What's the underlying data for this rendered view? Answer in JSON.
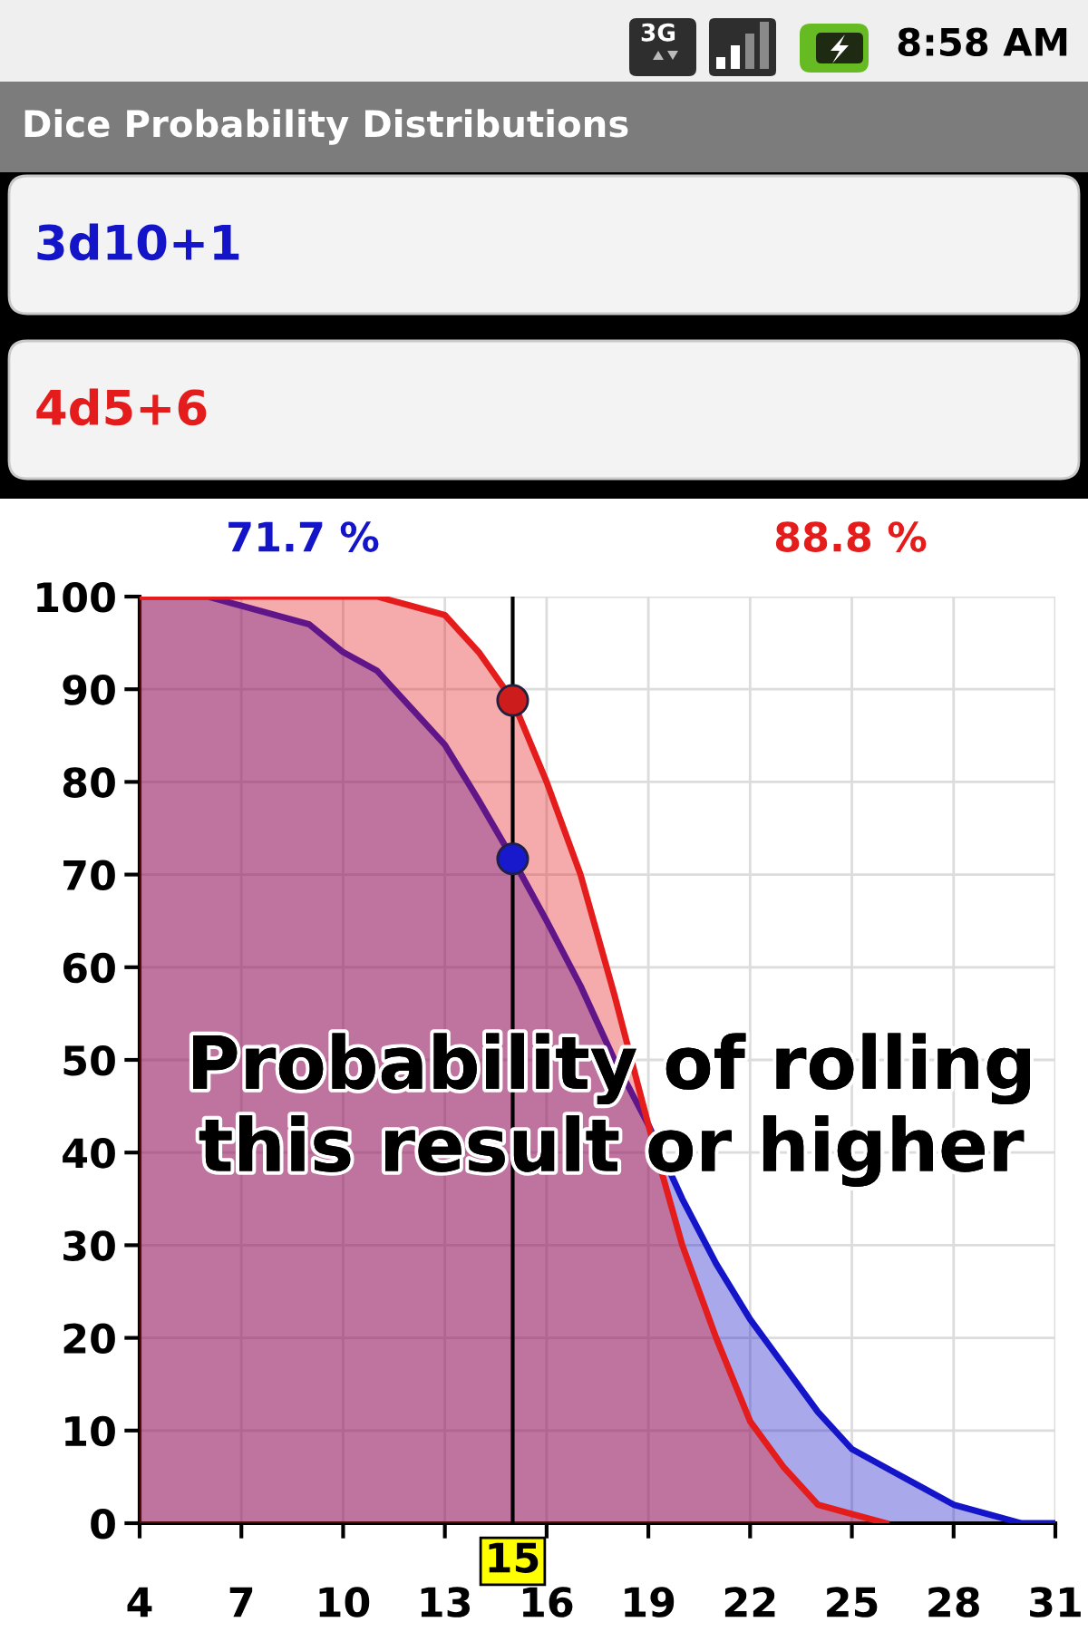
{
  "chart_data": {
    "type": "area",
    "title": "Dice Probability Distributions",
    "x": [
      4,
      5,
      6,
      7,
      8,
      9,
      10,
      11,
      12,
      13,
      14,
      15,
      16,
      17,
      18,
      19,
      20,
      21,
      22,
      23,
      24,
      25,
      26,
      27,
      28,
      29,
      30,
      31
    ],
    "series": [
      {
        "name": "3d10+1",
        "color": "#1414c8",
        "values": [
          100,
          100,
          100,
          99,
          98,
          97,
          94,
          92,
          88,
          84,
          78,
          71.7,
          65,
          58,
          50,
          43,
          35,
          28,
          22,
          17,
          12,
          8,
          6,
          4,
          2,
          1,
          0,
          0
        ]
      },
      {
        "name": "4d5+6",
        "color": "#e41c1c",
        "x": [
          4,
          5,
          6,
          7,
          8,
          9,
          10,
          11,
          12,
          13,
          14,
          15,
          16,
          17,
          18,
          19,
          20,
          21,
          22,
          23,
          24,
          25,
          26
        ],
        "values": [
          100,
          100,
          100,
          100,
          100,
          100,
          100,
          100,
          99,
          98,
          94,
          88.8,
          80,
          70,
          57,
          43,
          30,
          20,
          11,
          6,
          2,
          1,
          0
        ]
      },
      {
        "type": "scatter",
        "marker": "circle",
        "color": "#1818cc",
        "x": [
          15
        ],
        "values": [
          71.7
        ]
      },
      {
        "type": "scatter",
        "marker": "circle",
        "color": "#cc1c1c",
        "x": [
          15
        ],
        "values": [
          88.8
        ]
      }
    ],
    "xlim": [
      4,
      31
    ],
    "ylim": [
      0,
      100
    ],
    "xticks": [
      4,
      7,
      10,
      13,
      16,
      19,
      22,
      25,
      28,
      31
    ],
    "yticks": [
      0,
      10,
      20,
      30,
      40,
      50,
      60,
      70,
      80,
      90,
      100
    ],
    "grid": true,
    "ref_lines": [
      {
        "axis": "x",
        "value": 15,
        "label": "15",
        "color": "#000000"
      }
    ],
    "annotations": [
      "71.7 %",
      "88.8 %",
      "Probability of rolling\nthis result or higher",
      "3G",
      "8:58 AM"
    ]
  }
}
